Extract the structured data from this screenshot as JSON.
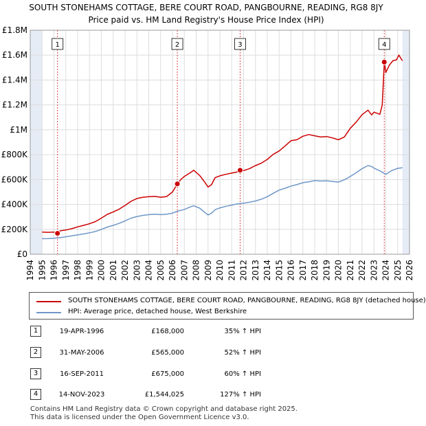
{
  "title": "SOUTH STONEHAMS COTTAGE, BERE COURT ROAD, PANGBOURNE, READING, RG8 8JY",
  "subtitle": "Price paid vs. HM Land Registry's House Price Index (HPI)",
  "colors": {
    "property": "#cc0000",
    "hpi": "#6f96c8",
    "shade": "#e6ecf6",
    "grid": "#dddddd"
  },
  "chart_data": {
    "type": "line",
    "xlim": [
      1994,
      2026
    ],
    "ylim": [
      0,
      1800000
    ],
    "yticks": [
      {
        "value": 0,
        "label": "£0"
      },
      {
        "value": 200000,
        "label": "£200K"
      },
      {
        "value": 400000,
        "label": "£400K"
      },
      {
        "value": 600000,
        "label": "£600K"
      },
      {
        "value": 800000,
        "label": "£800K"
      },
      {
        "value": 1000000,
        "label": "£1M"
      },
      {
        "value": 1200000,
        "label": "£1.2M"
      },
      {
        "value": 1400000,
        "label": "£1.4M"
      },
      {
        "value": 1600000,
        "label": "£1.6M"
      },
      {
        "value": 1800000,
        "label": "£1.8M"
      }
    ],
    "xticks": [
      "1994",
      "1995",
      "1996",
      "1997",
      "1998",
      "1999",
      "2000",
      "2001",
      "2002",
      "2003",
      "2004",
      "2005",
      "2006",
      "2007",
      "2008",
      "2009",
      "2010",
      "2011",
      "2012",
      "2013",
      "2014",
      "2015",
      "2016",
      "2017",
      "2018",
      "2019",
      "2020",
      "2021",
      "2022",
      "2023",
      "2024",
      "2025",
      "2026"
    ],
    "data_range": [
      1995.0,
      2025.4
    ],
    "series": [
      {
        "name": "SOUTH STONEHAMS COTTAGE, BERE COURT ROAD, PANGBOURNE, READING, RG8 8JY (detached house)",
        "color": "#cc0000",
        "x": [
          1995.0,
          1995.5,
          1996.0,
          1996.3,
          1996.5,
          1997.0,
          1997.5,
          1998.0,
          1998.5,
          1999.0,
          1999.5,
          2000.0,
          2000.5,
          2001.0,
          2001.5,
          2002.0,
          2002.5,
          2003.0,
          2003.5,
          2004.0,
          2004.5,
          2005.0,
          2005.5,
          2006.0,
          2006.41,
          2006.7,
          2007.0,
          2007.5,
          2007.8,
          2008.3,
          2008.7,
          2009.0,
          2009.3,
          2009.6,
          2010.0,
          2010.5,
          2011.0,
          2011.5,
          2011.71,
          2012.0,
          2012.5,
          2013.0,
          2013.5,
          2014.0,
          2014.5,
          2015.0,
          2015.5,
          2016.0,
          2016.5,
          2017.0,
          2017.5,
          2018.0,
          2018.5,
          2019.0,
          2019.5,
          2020.0,
          2020.5,
          2021.0,
          2021.5,
          2022.0,
          2022.5,
          2022.8,
          2023.0,
          2023.5,
          2023.7,
          2023.87,
          2024.0,
          2024.3,
          2024.6,
          2024.9,
          2025.1,
          2025.4
        ],
        "values": [
          178000,
          176000,
          178000,
          168000,
          188000,
          195000,
          205000,
          220000,
          232000,
          245000,
          262000,
          290000,
          320000,
          340000,
          362000,
          392000,
          425000,
          448000,
          458000,
          462000,
          465000,
          458000,
          463000,
          500000,
          565000,
          600000,
          625000,
          655000,
          675000,
          632000,
          582000,
          540000,
          560000,
          615000,
          630000,
          642000,
          652000,
          662000,
          675000,
          672000,
          688000,
          712000,
          732000,
          762000,
          802000,
          830000,
          870000,
          912000,
          920000,
          948000,
          962000,
          952000,
          942000,
          946000,
          935000,
          920000,
          942000,
          1012000,
          1062000,
          1122000,
          1158000,
          1120000,
          1142000,
          1125000,
          1200000,
          1544025,
          1460000,
          1520000,
          1555000,
          1562000,
          1600000,
          1555000
        ]
      },
      {
        "name": "HPI: Average price, detached house, West Berkshire",
        "color": "#6f96c8",
        "x": [
          1995.0,
          1995.5,
          1996.0,
          1996.5,
          1997.0,
          1997.5,
          1998.0,
          1998.5,
          1999.0,
          1999.5,
          2000.0,
          2000.5,
          2001.0,
          2001.5,
          2002.0,
          2002.5,
          2003.0,
          2003.5,
          2004.0,
          2004.5,
          2005.0,
          2005.5,
          2006.0,
          2006.5,
          2007.0,
          2007.5,
          2007.8,
          2008.3,
          2008.7,
          2009.0,
          2009.3,
          2009.6,
          2010.0,
          2010.5,
          2011.0,
          2011.5,
          2012.0,
          2012.5,
          2013.0,
          2013.5,
          2014.0,
          2014.5,
          2015.0,
          2015.5,
          2016.0,
          2016.5,
          2017.0,
          2017.5,
          2018.0,
          2018.5,
          2019.0,
          2019.5,
          2020.0,
          2020.5,
          2021.0,
          2021.5,
          2022.0,
          2022.5,
          2022.8,
          2023.0,
          2023.5,
          2024.0,
          2024.5,
          2025.0,
          2025.4
        ],
        "values": [
          125000,
          126000,
          128000,
          133000,
          140000,
          148000,
          155000,
          163000,
          172000,
          183000,
          200000,
          218000,
          232000,
          248000,
          268000,
          290000,
          303000,
          312000,
          318000,
          322000,
          318000,
          322000,
          330000,
          348000,
          360000,
          380000,
          390000,
          370000,
          338000,
          315000,
          330000,
          358000,
          372000,
          385000,
          395000,
          405000,
          410000,
          418000,
          428000,
          442000,
          462000,
          490000,
          515000,
          530000,
          548000,
          560000,
          575000,
          582000,
          592000,
          588000,
          590000,
          585000,
          580000,
          598000,
          625000,
          655000,
          688000,
          712000,
          705000,
          692000,
          670000,
          642000,
          672000,
          690000,
          695000
        ]
      }
    ],
    "transactions": [
      {
        "id": "1",
        "x": 1996.3,
        "price": 168000
      },
      {
        "id": "2",
        "x": 2006.41,
        "price": 565000
      },
      {
        "id": "3",
        "x": 2011.71,
        "price": 675000
      },
      {
        "id": "4",
        "x": 2023.87,
        "price": 1544025
      }
    ]
  },
  "legend": {
    "property_label": "SOUTH STONEHAMS COTTAGE, BERE COURT ROAD, PANGBOURNE, READING, RG8 8JY (detached house)",
    "hpi_label": "HPI: Average price, detached house, West Berkshire"
  },
  "table": [
    {
      "id": "1",
      "date": "19-APR-1996",
      "price": "£168,000",
      "hpi": "35% ↑ HPI"
    },
    {
      "id": "2",
      "date": "31-MAY-2006",
      "price": "£565,000",
      "hpi": "52% ↑ HPI"
    },
    {
      "id": "3",
      "date": "16-SEP-2011",
      "price": "£675,000",
      "hpi": "60% ↑ HPI"
    },
    {
      "id": "4",
      "date": "14-NOV-2023",
      "price": "£1,544,025",
      "hpi": "127% ↑ HPI"
    }
  ],
  "footer": {
    "line1": "Contains HM Land Registry data © Crown copyright and database right 2025.",
    "line2": "This data is licensed under the Open Government Licence v3.0."
  }
}
